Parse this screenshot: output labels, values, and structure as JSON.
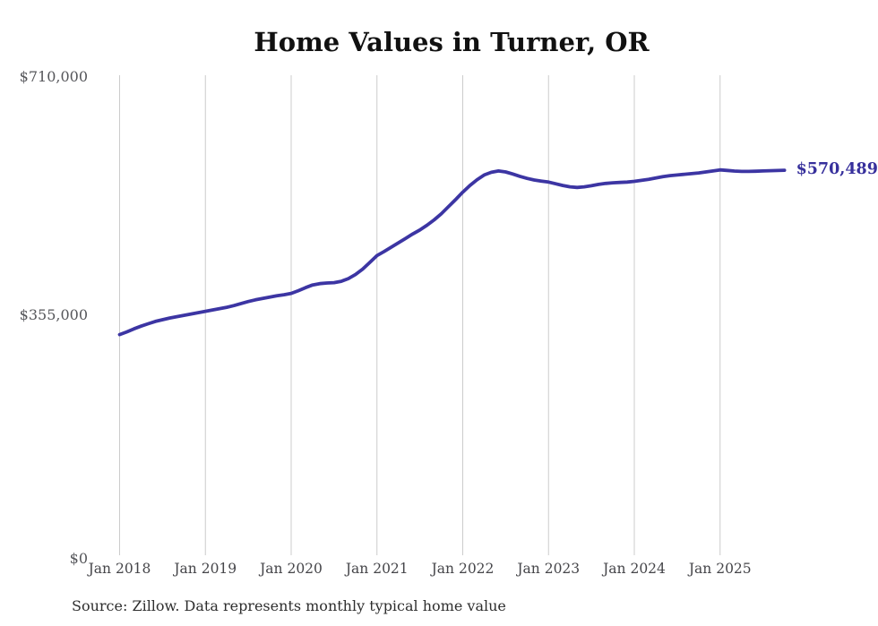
{
  "title": "Home Values in Turner, OR",
  "end_label": "$570,489",
  "source_note": "Source: Zillow. Data represents monthly typical home value",
  "y_axis": {
    "ticks": [
      "$710,000",
      "$355,000",
      "$0"
    ]
  },
  "x_axis": {
    "ticks": [
      "Jan 2018",
      "Jan 2019",
      "Jan 2020",
      "Jan 2021",
      "Jan 2022",
      "Jan 2023",
      "Jan 2024",
      "Jan 2025"
    ]
  },
  "colors": {
    "line": "#3c35a3",
    "end_label": "#37309c",
    "grid": "#cccccc",
    "title": "#111111",
    "y_tick": "#55565a",
    "x_tick": "#454549",
    "source": "#2e2e2e"
  },
  "chart_data": {
    "type": "line",
    "title": "Home Values in Turner, OR",
    "xlabel": "",
    "ylabel": "",
    "x_interval": "monthly",
    "x_start": "2018-01",
    "x_end": "2025-10",
    "x_tick_labels": [
      "Jan 2018",
      "Jan 2019",
      "Jan 2020",
      "Jan 2021",
      "Jan 2022",
      "Jan 2023",
      "Jan 2024",
      "Jan 2025"
    ],
    "y_ticks": [
      0,
      355000,
      710000
    ],
    "ylim": [
      0,
      710000
    ],
    "grid": "vertical-only",
    "legend": "none",
    "final_value": 570489,
    "annotations": [
      {
        "text": "$570,489",
        "position": "line-end"
      }
    ],
    "series": [
      {
        "name": "Typical home value (USD)",
        "values": [
          327000,
          331000,
          335500,
          339500,
          343000,
          346500,
          349000,
          351500,
          353500,
          355500,
          357500,
          359500,
          361500,
          363500,
          365500,
          367500,
          370000,
          373000,
          376000,
          378500,
          380500,
          382500,
          384500,
          386000,
          388000,
          392000,
          396500,
          400500,
          402500,
          403500,
          404000,
          406000,
          410000,
          416000,
          424000,
          434000,
          444000,
          450000,
          456500,
          463000,
          469500,
          476000,
          482000,
          489000,
          497000,
          506000,
          516500,
          527000,
          538000,
          548000,
          556500,
          563500,
          567500,
          569500,
          568000,
          565000,
          561500,
          558500,
          556000,
          554500,
          553000,
          550500,
          548000,
          546000,
          545000,
          546000,
          547500,
          549500,
          551000,
          552000,
          552500,
          553000,
          554000,
          555500,
          557000,
          559000,
          561000,
          562500,
          563500,
          564500,
          565500,
          566500,
          568000,
          569500,
          571000,
          570200,
          569300,
          568800,
          568800,
          569000,
          569400,
          569800,
          570100,
          570489
        ]
      }
    ]
  }
}
